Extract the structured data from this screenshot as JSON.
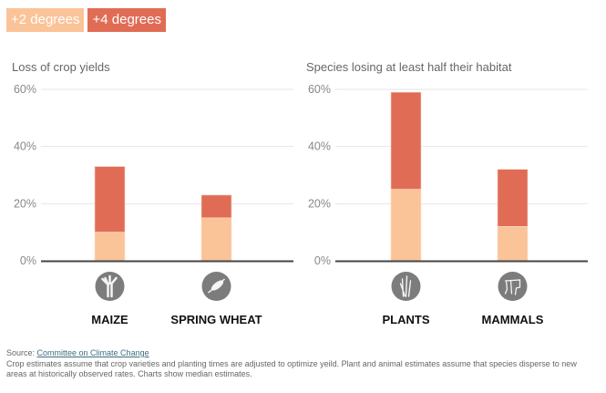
{
  "legend": [
    {
      "label": "+2 degrees",
      "color": "#fbc398"
    },
    {
      "label": "+4 degrees",
      "color": "#e06c55"
    }
  ],
  "chart_data": [
    {
      "type": "bar",
      "stacked": true,
      "title": "Loss of crop yields",
      "categories": [
        "MAIZE",
        "SPRING WHEAT"
      ],
      "icons": [
        "maize-icon",
        "wheat-icon"
      ],
      "series": [
        {
          "name": "+2 degrees",
          "values": [
            10,
            15
          ]
        },
        {
          "name": "+4 degrees (total)",
          "values": [
            33,
            23
          ]
        }
      ],
      "yticks": [
        "0%",
        "20%",
        "40%",
        "60%"
      ],
      "ylim": [
        0,
        60
      ],
      "grid": true,
      "xlabel": "",
      "ylabel": ""
    },
    {
      "type": "bar",
      "stacked": true,
      "title": "Species losing at least half their habitat",
      "categories": [
        "PLANTS",
        "MAMMALS"
      ],
      "icons": [
        "plant-icon",
        "mammal-icon"
      ],
      "series": [
        {
          "name": "+2 degrees",
          "values": [
            25,
            12
          ]
        },
        {
          "name": "+4 degrees (total)",
          "values": [
            59,
            32
          ]
        }
      ],
      "yticks": [
        "0%",
        "20%",
        "40%",
        "60%"
      ],
      "ylim": [
        0,
        60
      ],
      "grid": true,
      "xlabel": "",
      "ylabel": ""
    }
  ],
  "footer": {
    "source_prefix": "Source: ",
    "source_link": "Committee on Climate Change",
    "note": "Crop estimates assume that crop varieties and planting times are adjusted to optimize yeild. Plant and animal estimates assume that species disperse to new areas at historically observed rates. Charts show median estimates."
  }
}
